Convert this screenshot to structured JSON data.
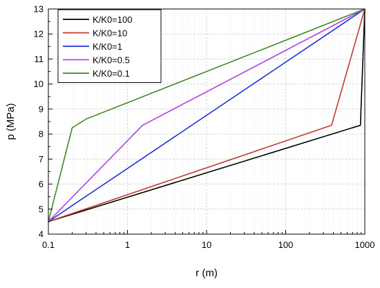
{
  "chart_data": {
    "type": "line",
    "xlabel": "r (m)",
    "ylabel": "p (MPa)",
    "x_scale": "log",
    "xlim": [
      0.1,
      1000
    ],
    "ylim": [
      4,
      13
    ],
    "x_ticks": [
      {
        "value": 0.1,
        "label": "0.1"
      },
      {
        "value": 1,
        "label": "1"
      },
      {
        "value": 10,
        "label": "10"
      },
      {
        "value": 100,
        "label": "100"
      },
      {
        "value": 1000,
        "label": "1000"
      }
    ],
    "y_ticks": [
      {
        "value": 4,
        "label": "4"
      },
      {
        "value": 5,
        "label": "5"
      },
      {
        "value": 6,
        "label": "6"
      },
      {
        "value": 7,
        "label": "7"
      },
      {
        "value": 8,
        "label": "8"
      },
      {
        "value": 9,
        "label": "9"
      },
      {
        "value": 10,
        "label": "10"
      },
      {
        "value": 11,
        "label": "11"
      },
      {
        "value": 12,
        "label": "12"
      },
      {
        "value": 13,
        "label": "13"
      }
    ],
    "grid": true,
    "legend": "top-left",
    "series": [
      {
        "name": "K/K0=100",
        "color": "#000000",
        "points": [
          [
            0.1,
            4.5
          ],
          [
            880,
            8.35
          ],
          [
            1000,
            13
          ]
        ]
      },
      {
        "name": "K/K0=10",
        "color": "#c0392b",
        "points": [
          [
            0.1,
            4.5
          ],
          [
            380,
            8.35
          ],
          [
            1000,
            13
          ]
        ]
      },
      {
        "name": "K/K0=1",
        "color": "#1f2fd6",
        "points": [
          [
            0.1,
            4.5
          ],
          [
            1000,
            13
          ]
        ]
      },
      {
        "name": "K/K0=0.5",
        "color": "#b040e8",
        "points": [
          [
            0.1,
            4.5
          ],
          [
            1.55,
            8.35
          ],
          [
            1000,
            13
          ]
        ]
      },
      {
        "name": "K/K0=0.1",
        "color": "#3a8a1e",
        "points": [
          [
            0.1,
            4.5
          ],
          [
            0.2,
            8.25
          ],
          [
            0.3,
            8.6
          ],
          [
            1000,
            13
          ]
        ]
      }
    ]
  }
}
